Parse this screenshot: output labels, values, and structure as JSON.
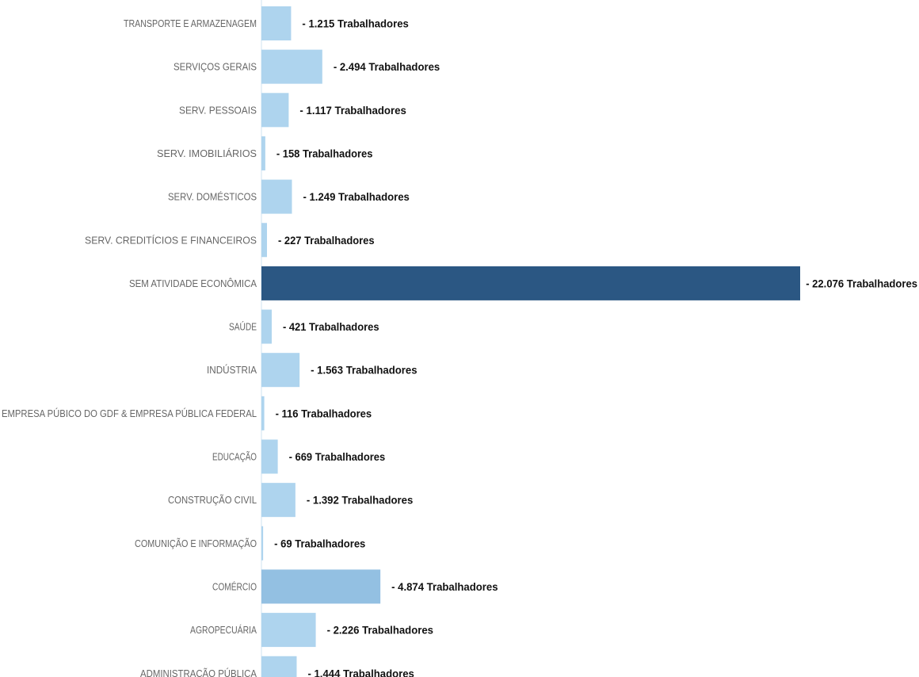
{
  "chart_data": {
    "type": "bar",
    "orientation": "horizontal",
    "title": "",
    "xlabel": "",
    "ylabel": "",
    "unit": "Trabalhadores",
    "grid": false,
    "legend": "none",
    "xlim": [
      0,
      22076
    ],
    "categories": [
      "TRANSPORTE E ARMAZENAGEM",
      "SERVIÇOS GERAIS",
      "SERV. PESSOAIS",
      "SERV. IMOBILIÁRIOS",
      "SERV. DOMÉSTICOS",
      "SERV. CREDITÍCIOS E FINANCEIROS",
      "SEM ATIVIDADE ECONÔMICA",
      "SAÚDE",
      "INDÚSTRIA",
      "EMPRESA PÚBICO DO GDF & EMPRESA PÚBLICA FEDERAL",
      "EDUCAÇÃO",
      "CONSTRUÇÃO CIVIL",
      "COMUNIÇÃO E INFORMAÇÃO",
      "COMÉRCIO",
      "AGROPECUÁRIA",
      "ADMINISTRAÇÃO PÚBLICA"
    ],
    "values": [
      1215,
      2494,
      1117,
      158,
      1249,
      227,
      22076,
      421,
      1563,
      116,
      669,
      1392,
      69,
      4874,
      2226,
      1444
    ],
    "value_labels": [
      "- 1.215 Trabalhadores",
      "- 2.494 Trabalhadores",
      "- 1.117 Trabalhadores",
      "- 158 Trabalhadores",
      "- 1.249 Trabalhadores",
      "- 227 Trabalhadores",
      "- 22.076 Trabalhadores",
      "- 421 Trabalhadores",
      "- 1.563 Trabalhadores",
      "- 116 Trabalhadores",
      "- 669 Trabalhadores",
      "- 1.392 Trabalhadores",
      "- 69 Trabalhadores",
      "- 4.874 Trabalhadores",
      "- 2.226 Trabalhadores",
      "- 1.444 Trabalhadores"
    ],
    "colors": {
      "light": "#aed4ee",
      "medium": "#93c0e2",
      "dark": "#2b5783"
    }
  }
}
